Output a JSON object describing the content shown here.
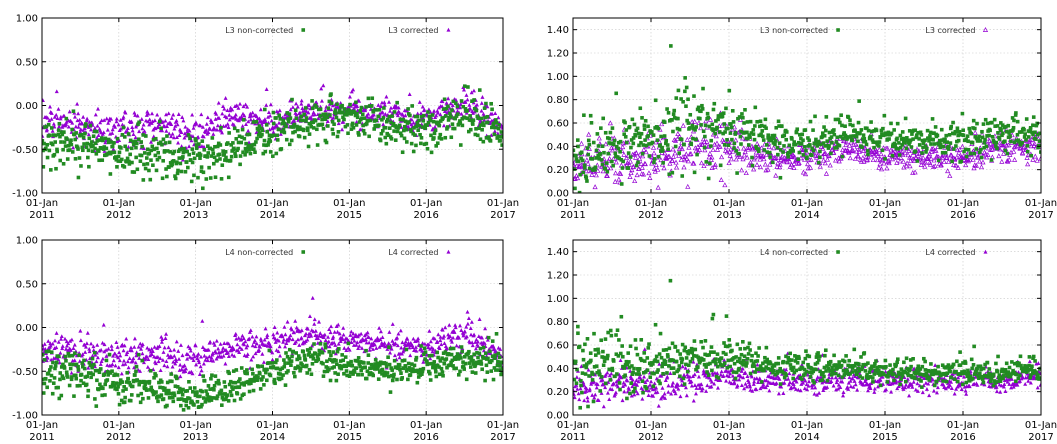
{
  "colors": {
    "non_corrected": "#228b22",
    "corrected": "#9400d3",
    "grid": "#c8c8c8"
  },
  "chart_data": [
    {
      "type": "scatter",
      "id": "L3-bias",
      "title": "",
      "xlabel": "",
      "ylabel": "",
      "ylim": [
        -1.0,
        1.0
      ],
      "yticks": [
        "-1.00",
        "-0.50",
        "0.00",
        "0.50",
        "1.00"
      ],
      "yticks_values": [
        -1.0,
        -0.5,
        0.0,
        0.5,
        1.0
      ],
      "xlim": [
        "2011-01-01",
        "2017-01-01"
      ],
      "xticks": [
        {
          "top": "01-Jan",
          "bottom": "2011"
        },
        {
          "top": "01-Jan",
          "bottom": "2012"
        },
        {
          "top": "01-Jan",
          "bottom": "2013"
        },
        {
          "top": "01-Jan",
          "bottom": "2014"
        },
        {
          "top": "01-Jan",
          "bottom": "2015"
        },
        {
          "top": "01-Jan",
          "bottom": "2016"
        },
        {
          "top": "01-Jan",
          "bottom": "2017"
        }
      ],
      "grid": true,
      "legend_position": "top-right",
      "series": [
        {
          "name": "L3 non-corrected",
          "marker": "filled-square",
          "values_by_year": [
            {
              "x": "2011-01-01",
              "y": -0.38,
              "spread": 0.22
            },
            {
              "x": "2011-07-01",
              "y": -0.45,
              "spread": 0.25
            },
            {
              "x": "2012-01-01",
              "y": -0.52,
              "spread": 0.24
            },
            {
              "x": "2012-07-01",
              "y": -0.58,
              "spread": 0.25
            },
            {
              "x": "2013-01-01",
              "y": -0.62,
              "spread": 0.24
            },
            {
              "x": "2013-07-01",
              "y": -0.48,
              "spread": 0.25
            },
            {
              "x": "2014-01-01",
              "y": -0.32,
              "spread": 0.22
            },
            {
              "x": "2014-07-01",
              "y": -0.14,
              "spread": 0.22
            },
            {
              "x": "2015-01-01",
              "y": -0.16,
              "spread": 0.22
            },
            {
              "x": "2015-07-01",
              "y": -0.18,
              "spread": 0.2
            },
            {
              "x": "2016-01-01",
              "y": -0.28,
              "spread": 0.22
            },
            {
              "x": "2016-07-01",
              "y": -0.1,
              "spread": 0.22
            },
            {
              "x": "2017-01-01",
              "y": -0.32,
              "spread": 0.2
            }
          ]
        },
        {
          "name": "L3 corrected",
          "marker": "filled-triangle",
          "values_by_year": [
            {
              "x": "2011-01-01",
              "y": -0.18,
              "spread": 0.18
            },
            {
              "x": "2011-07-01",
              "y": -0.22,
              "spread": 0.18
            },
            {
              "x": "2012-01-01",
              "y": -0.3,
              "spread": 0.18
            },
            {
              "x": "2012-07-01",
              "y": -0.2,
              "spread": 0.2
            },
            {
              "x": "2013-01-01",
              "y": -0.35,
              "spread": 0.18
            },
            {
              "x": "2013-07-01",
              "y": -0.12,
              "spread": 0.16
            },
            {
              "x": "2014-01-01",
              "y": -0.22,
              "spread": 0.16
            },
            {
              "x": "2014-07-01",
              "y": -0.04,
              "spread": 0.14
            },
            {
              "x": "2015-01-01",
              "y": -0.08,
              "spread": 0.14
            },
            {
              "x": "2015-07-01",
              "y": -0.1,
              "spread": 0.14
            },
            {
              "x": "2016-01-01",
              "y": -0.18,
              "spread": 0.14
            },
            {
              "x": "2016-07-01",
              "y": 0.05,
              "spread": 0.2
            },
            {
              "x": "2017-01-01",
              "y": -0.28,
              "spread": 0.14
            }
          ]
        }
      ]
    },
    {
      "type": "scatter",
      "id": "L3-rmse",
      "title": "",
      "xlabel": "",
      "ylabel": "",
      "ylim": [
        0.0,
        1.5
      ],
      "yticks": [
        "0.00",
        "0.20",
        "0.40",
        "0.60",
        "0.80",
        "1.00",
        "1.20",
        "1.40"
      ],
      "yticks_values": [
        0.0,
        0.2,
        0.4,
        0.6,
        0.8,
        1.0,
        1.2,
        1.4
      ],
      "xlim": [
        "2011-01-01",
        "2017-01-01"
      ],
      "xticks": [
        {
          "top": "01-Jan",
          "bottom": "2011"
        },
        {
          "top": "01-Jan",
          "bottom": "2012"
        },
        {
          "top": "01-Jan",
          "bottom": "2013"
        },
        {
          "top": "01-Jan",
          "bottom": "2014"
        },
        {
          "top": "01-Jan",
          "bottom": "2015"
        },
        {
          "top": "01-Jan",
          "bottom": "2016"
        },
        {
          "top": "01-Jan",
          "bottom": "2017"
        }
      ],
      "grid": true,
      "legend_position": "top-right",
      "series": [
        {
          "name": "L3 non-corrected",
          "marker": "filled-square",
          "values_by_year": [
            {
              "x": "2011-01-01",
              "y": 0.3,
              "spread": 0.18
            },
            {
              "x": "2011-07-01",
              "y": 0.38,
              "spread": 0.22
            },
            {
              "x": "2012-01-01",
              "y": 0.45,
              "spread": 0.25
            },
            {
              "x": "2012-07-01",
              "y": 0.58,
              "spread": 0.3
            },
            {
              "x": "2013-01-01",
              "y": 0.55,
              "spread": 0.25
            },
            {
              "x": "2013-07-01",
              "y": 0.45,
              "spread": 0.18
            },
            {
              "x": "2014-01-01",
              "y": 0.42,
              "spread": 0.15
            },
            {
              "x": "2014-07-01",
              "y": 0.5,
              "spread": 0.16
            },
            {
              "x": "2015-01-01",
              "y": 0.48,
              "spread": 0.14
            },
            {
              "x": "2015-07-01",
              "y": 0.45,
              "spread": 0.14
            },
            {
              "x": "2016-01-01",
              "y": 0.44,
              "spread": 0.14
            },
            {
              "x": "2016-07-01",
              "y": 0.52,
              "spread": 0.16
            },
            {
              "x": "2017-01-01",
              "y": 0.5,
              "spread": 0.14
            }
          ]
        },
        {
          "name": "L3 corrected",
          "marker": "open-triangle",
          "values_by_year": [
            {
              "x": "2011-01-01",
              "y": 0.22,
              "spread": 0.14
            },
            {
              "x": "2011-07-01",
              "y": 0.28,
              "spread": 0.18
            },
            {
              "x": "2012-01-01",
              "y": 0.3,
              "spread": 0.18
            },
            {
              "x": "2012-07-01",
              "y": 0.38,
              "spread": 0.22
            },
            {
              "x": "2013-01-01",
              "y": 0.42,
              "spread": 0.2
            },
            {
              "x": "2013-07-01",
              "y": 0.3,
              "spread": 0.12
            },
            {
              "x": "2014-01-01",
              "y": 0.3,
              "spread": 0.12
            },
            {
              "x": "2014-07-01",
              "y": 0.36,
              "spread": 0.12
            },
            {
              "x": "2015-01-01",
              "y": 0.32,
              "spread": 0.1
            },
            {
              "x": "2015-07-01",
              "y": 0.3,
              "spread": 0.1
            },
            {
              "x": "2016-01-01",
              "y": 0.3,
              "spread": 0.1
            },
            {
              "x": "2016-07-01",
              "y": 0.4,
              "spread": 0.14
            },
            {
              "x": "2017-01-01",
              "y": 0.38,
              "spread": 0.12
            }
          ]
        }
      ]
    },
    {
      "type": "scatter",
      "id": "L4-bias",
      "title": "",
      "xlabel": "",
      "ylabel": "",
      "ylim": [
        -1.0,
        1.0
      ],
      "yticks": [
        "-1.00",
        "-0.50",
        "0.00",
        "0.50",
        "1.00"
      ],
      "yticks_values": [
        -1.0,
        -0.5,
        0.0,
        0.5,
        1.0
      ],
      "xlim": [
        "2011-01-01",
        "2017-01-01"
      ],
      "xticks": [
        {
          "top": "01-Jan",
          "bottom": "2011"
        },
        {
          "top": "01-Jan",
          "bottom": "2012"
        },
        {
          "top": "01-Jan",
          "bottom": "2013"
        },
        {
          "top": "01-Jan",
          "bottom": "2014"
        },
        {
          "top": "01-Jan",
          "bottom": "2015"
        },
        {
          "top": "01-Jan",
          "bottom": "2016"
        },
        {
          "top": "01-Jan",
          "bottom": "2017"
        }
      ],
      "grid": true,
      "legend_position": "top-right",
      "series": [
        {
          "name": "L4 non-corrected",
          "marker": "filled-square",
          "values_by_year": [
            {
              "x": "2011-01-01",
              "y": -0.5,
              "spread": 0.25
            },
            {
              "x": "2011-07-01",
              "y": -0.55,
              "spread": 0.25
            },
            {
              "x": "2012-01-01",
              "y": -0.62,
              "spread": 0.22
            },
            {
              "x": "2012-07-01",
              "y": -0.72,
              "spread": 0.2
            },
            {
              "x": "2013-01-01",
              "y": -0.8,
              "spread": 0.16
            },
            {
              "x": "2013-07-01",
              "y": -0.68,
              "spread": 0.16
            },
            {
              "x": "2014-01-01",
              "y": -0.5,
              "spread": 0.16
            },
            {
              "x": "2014-07-01",
              "y": -0.35,
              "spread": 0.16
            },
            {
              "x": "2015-01-01",
              "y": -0.45,
              "spread": 0.16
            },
            {
              "x": "2015-07-01",
              "y": -0.48,
              "spread": 0.16
            },
            {
              "x": "2016-01-01",
              "y": -0.45,
              "spread": 0.16
            },
            {
              "x": "2016-07-01",
              "y": -0.38,
              "spread": 0.16
            },
            {
              "x": "2017-01-01",
              "y": -0.42,
              "spread": 0.14
            }
          ]
        },
        {
          "name": "L4 corrected",
          "marker": "filled-triangle",
          "values_by_year": [
            {
              "x": "2011-01-01",
              "y": -0.2,
              "spread": 0.2
            },
            {
              "x": "2011-07-01",
              "y": -0.3,
              "spread": 0.2
            },
            {
              "x": "2012-01-01",
              "y": -0.35,
              "spread": 0.2
            },
            {
              "x": "2012-07-01",
              "y": -0.3,
              "spread": 0.2
            },
            {
              "x": "2013-01-01",
              "y": -0.38,
              "spread": 0.18
            },
            {
              "x": "2013-07-01",
              "y": -0.22,
              "spread": 0.14
            },
            {
              "x": "2014-01-01",
              "y": -0.18,
              "spread": 0.14
            },
            {
              "x": "2014-07-01",
              "y": -0.08,
              "spread": 0.14
            },
            {
              "x": "2015-01-01",
              "y": -0.15,
              "spread": 0.14
            },
            {
              "x": "2015-07-01",
              "y": -0.2,
              "spread": 0.14
            },
            {
              "x": "2016-01-01",
              "y": -0.25,
              "spread": 0.14
            },
            {
              "x": "2016-07-01",
              "y": -0.05,
              "spread": 0.18
            },
            {
              "x": "2017-01-01",
              "y": -0.35,
              "spread": 0.12
            }
          ]
        }
      ]
    },
    {
      "type": "scatter",
      "id": "L4-rmse",
      "title": "",
      "xlabel": "",
      "ylabel": "",
      "ylim": [
        0.0,
        1.5
      ],
      "yticks": [
        "0.00",
        "0.20",
        "0.40",
        "0.60",
        "0.80",
        "1.00",
        "1.20",
        "1.40"
      ],
      "yticks_values": [
        0.0,
        0.2,
        0.4,
        0.6,
        0.8,
        1.0,
        1.2,
        1.4
      ],
      "xlim": [
        "2011-01-01",
        "2017-01-01"
      ],
      "xticks": [
        {
          "top": "01-Jan",
          "bottom": "2011"
        },
        {
          "top": "01-Jan",
          "bottom": "2012"
        },
        {
          "top": "01-Jan",
          "bottom": "2013"
        },
        {
          "top": "01-Jan",
          "bottom": "2014"
        },
        {
          "top": "01-Jan",
          "bottom": "2015"
        },
        {
          "top": "01-Jan",
          "bottom": "2016"
        },
        {
          "top": "01-Jan",
          "bottom": "2017"
        }
      ],
      "grid": true,
      "legend_position": "top-right",
      "series": [
        {
          "name": "L4 non-corrected",
          "marker": "filled-square",
          "values_by_year": [
            {
              "x": "2011-01-01",
              "y": 0.42,
              "spread": 0.3
            },
            {
              "x": "2011-07-01",
              "y": 0.45,
              "spread": 0.25
            },
            {
              "x": "2012-01-01",
              "y": 0.45,
              "spread": 0.22
            },
            {
              "x": "2012-07-01",
              "y": 0.48,
              "spread": 0.2
            },
            {
              "x": "2013-01-01",
              "y": 0.5,
              "spread": 0.15
            },
            {
              "x": "2013-07-01",
              "y": 0.42,
              "spread": 0.12
            },
            {
              "x": "2014-01-01",
              "y": 0.4,
              "spread": 0.12
            },
            {
              "x": "2014-07-01",
              "y": 0.4,
              "spread": 0.12
            },
            {
              "x": "2015-01-01",
              "y": 0.38,
              "spread": 0.1
            },
            {
              "x": "2015-07-01",
              "y": 0.38,
              "spread": 0.1
            },
            {
              "x": "2016-01-01",
              "y": 0.36,
              "spread": 0.1
            },
            {
              "x": "2016-07-01",
              "y": 0.36,
              "spread": 0.1
            },
            {
              "x": "2017-01-01",
              "y": 0.4,
              "spread": 0.1
            }
          ]
        },
        {
          "name": "L4 corrected",
          "marker": "filled-triangle",
          "values_by_year": [
            {
              "x": "2011-01-01",
              "y": 0.25,
              "spread": 0.16
            },
            {
              "x": "2011-07-01",
              "y": 0.25,
              "spread": 0.14
            },
            {
              "x": "2012-01-01",
              "y": 0.26,
              "spread": 0.14
            },
            {
              "x": "2012-07-01",
              "y": 0.3,
              "spread": 0.14
            },
            {
              "x": "2013-01-01",
              "y": 0.32,
              "spread": 0.12
            },
            {
              "x": "2013-07-01",
              "y": 0.28,
              "spread": 0.1
            },
            {
              "x": "2014-01-01",
              "y": 0.26,
              "spread": 0.1
            },
            {
              "x": "2014-07-01",
              "y": 0.3,
              "spread": 0.1
            },
            {
              "x": "2015-01-01",
              "y": 0.3,
              "spread": 0.1
            },
            {
              "x": "2015-07-01",
              "y": 0.28,
              "spread": 0.1
            },
            {
              "x": "2016-01-01",
              "y": 0.28,
              "spread": 0.1
            },
            {
              "x": "2016-07-01",
              "y": 0.3,
              "spread": 0.1
            },
            {
              "x": "2017-01-01",
              "y": 0.34,
              "spread": 0.1
            }
          ]
        }
      ]
    }
  ]
}
